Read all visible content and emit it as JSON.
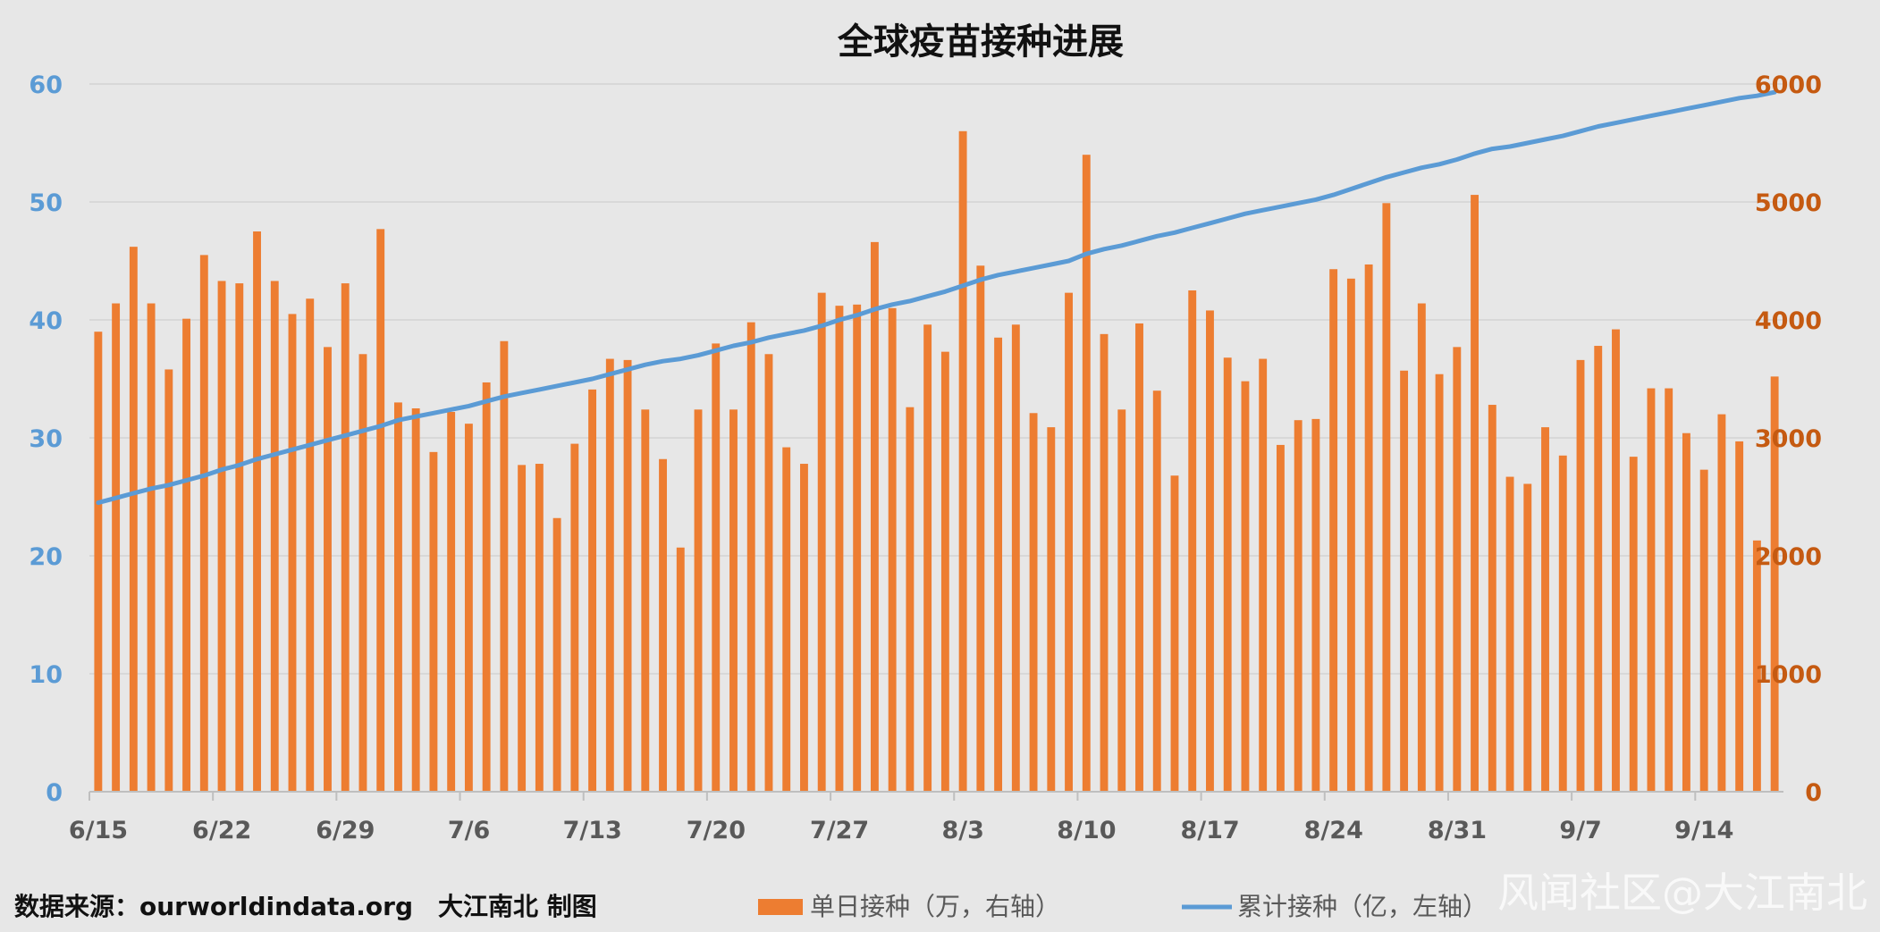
{
  "chart_data": {
    "type": "bar+line",
    "title": "全球疫苗接种进展",
    "source_text": "数据来源：ourworldindata.org　大江南北 制图",
    "x_ticks": [
      "6/15",
      "6/22",
      "6/29",
      "7/6",
      "7/13",
      "7/20",
      "7/27",
      "8/3",
      "8/10",
      "8/17",
      "8/24",
      "8/31",
      "9/7",
      "9/14"
    ],
    "x_dates": [
      "6/15",
      "6/16",
      "6/17",
      "6/18",
      "6/19",
      "6/20",
      "6/21",
      "6/22",
      "6/23",
      "6/24",
      "6/25",
      "6/26",
      "6/27",
      "6/28",
      "6/29",
      "6/30",
      "7/1",
      "7/2",
      "7/3",
      "7/4",
      "7/5",
      "7/6",
      "7/7",
      "7/8",
      "7/9",
      "7/10",
      "7/11",
      "7/12",
      "7/13",
      "7/14",
      "7/15",
      "7/16",
      "7/17",
      "7/18",
      "7/19",
      "7/20",
      "7/21",
      "7/22",
      "7/23",
      "7/24",
      "7/25",
      "7/26",
      "7/27",
      "7/28",
      "7/29",
      "7/30",
      "7/31",
      "8/1",
      "8/2",
      "8/3",
      "8/4",
      "8/5",
      "8/6",
      "8/7",
      "8/8",
      "8/9",
      "8/10",
      "8/11",
      "8/12",
      "8/13",
      "8/14",
      "8/15",
      "8/16",
      "8/17",
      "8/18",
      "8/19",
      "8/20",
      "8/21",
      "8/22",
      "8/23",
      "8/24",
      "8/25",
      "8/26",
      "8/27",
      "8/28",
      "8/29",
      "8/30",
      "8/31",
      "9/1",
      "9/2",
      "9/3",
      "9/4",
      "9/5",
      "9/6",
      "9/7",
      "9/8",
      "9/9",
      "9/10",
      "9/11",
      "9/12",
      "9/13",
      "9/14",
      "9/15",
      "9/16",
      "9/17",
      "9/18"
    ],
    "left_axis": {
      "label_color": "#5b9bd5",
      "ylim": [
        0,
        60
      ],
      "ticks": [
        0,
        10,
        20,
        30,
        40,
        50,
        60
      ]
    },
    "right_axis": {
      "label_color": "#c55a11",
      "ylim": [
        0,
        6000
      ],
      "ticks": [
        0,
        1000,
        2000,
        3000,
        4000,
        5000,
        6000
      ]
    },
    "series": [
      {
        "name": "单日接种（万，右轴）",
        "type": "bar",
        "axis": "right",
        "color": "#ed7d31",
        "values": [
          3900,
          4140,
          4620,
          4140,
          3580,
          4010,
          4550,
          4330,
          4310,
          4750,
          4330,
          4050,
          4180,
          3770,
          4310,
          3710,
          4770,
          3300,
          3250,
          2880,
          3220,
          3120,
          3470,
          3820,
          2770,
          2780,
          2320,
          2950,
          3410,
          3670,
          3660,
          3240,
          2820,
          2070,
          3240,
          3800,
          3240,
          3980,
          3710,
          2920,
          2780,
          4230,
          4120,
          4130,
          4660,
          4100,
          3260,
          3960,
          3730,
          5600,
          4460,
          3850,
          3960,
          3210,
          3090,
          4230,
          5400,
          3880,
          3240,
          3970,
          3400,
          2680,
          4250,
          4080,
          3680,
          3480,
          3670,
          2940,
          3150,
          3160,
          4430,
          4350,
          4470,
          4990,
          3570,
          4140,
          3540,
          3770,
          5060,
          3280,
          2670,
          2610,
          3090,
          2850,
          3660,
          3780,
          3920,
          2840,
          3420,
          3420,
          3040,
          2730,
          3200,
          2970,
          2130,
          3520
        ]
      },
      {
        "name": "累计接种（亿，左轴）",
        "type": "line",
        "axis": "left",
        "color": "#5b9bd5",
        "values": [
          24.5,
          24.9,
          25.3,
          25.7,
          26.0,
          26.4,
          26.8,
          27.3,
          27.7,
          28.2,
          28.6,
          29.0,
          29.4,
          29.8,
          30.2,
          30.6,
          31.0,
          31.5,
          31.8,
          32.1,
          32.4,
          32.7,
          33.1,
          33.5,
          33.8,
          34.1,
          34.4,
          34.7,
          35.0,
          35.4,
          35.8,
          36.2,
          36.5,
          36.7,
          37.0,
          37.4,
          37.8,
          38.1,
          38.5,
          38.8,
          39.1,
          39.5,
          40.0,
          40.4,
          40.9,
          41.3,
          41.6,
          42.0,
          42.4,
          42.9,
          43.4,
          43.8,
          44.1,
          44.4,
          44.7,
          45.0,
          45.6,
          46.0,
          46.3,
          46.7,
          47.1,
          47.4,
          47.8,
          48.2,
          48.6,
          49.0,
          49.3,
          49.6,
          49.9,
          50.2,
          50.6,
          51.1,
          51.6,
          52.1,
          52.5,
          52.9,
          53.2,
          53.6,
          54.1,
          54.5,
          54.7,
          55.0,
          55.3,
          55.6,
          56.0,
          56.4,
          56.7,
          57.0,
          57.3,
          57.6,
          57.9,
          58.2,
          58.5,
          58.8,
          59.0,
          59.3
        ]
      }
    ],
    "legend_position": "bottom",
    "grid": true
  }
}
